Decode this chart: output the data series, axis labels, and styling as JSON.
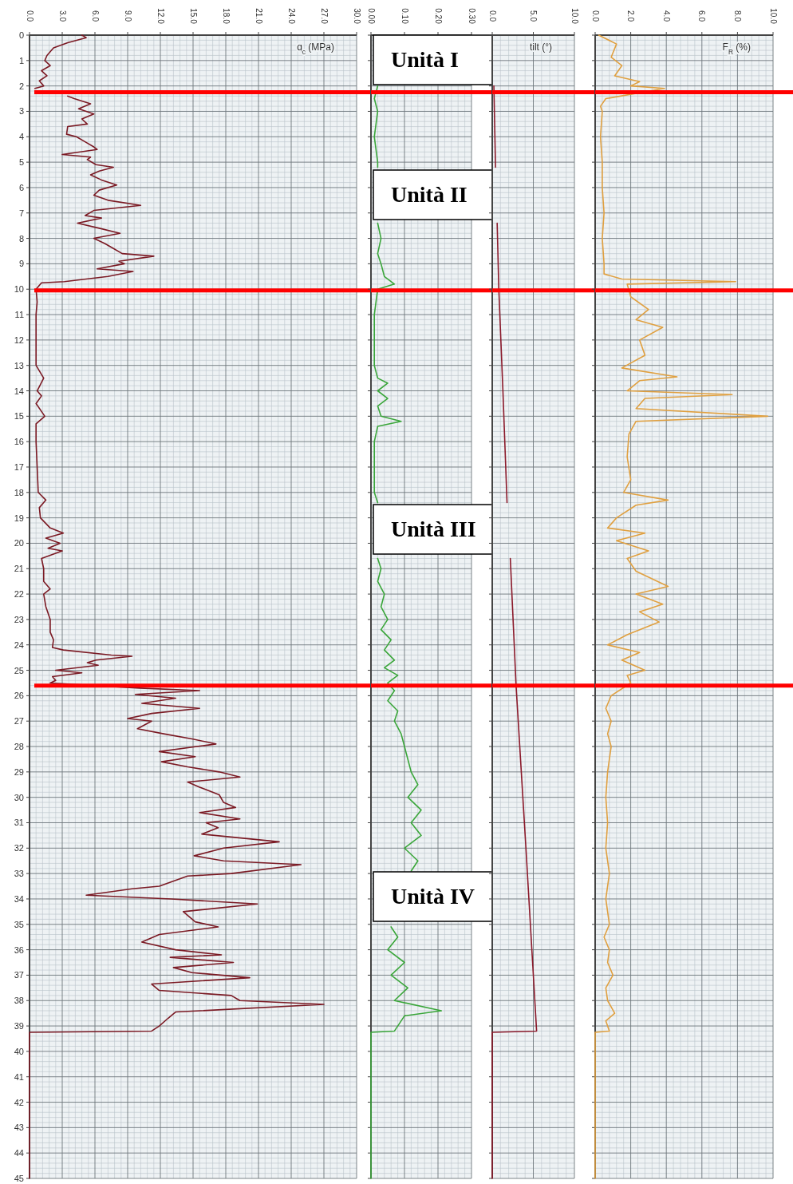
{
  "chart_data": [
    {
      "type": "line",
      "xlabel": "q$_{c}$ (MPa)",
      "xlim": [
        0,
        30
      ],
      "xticks": [
        {
          "value": 0,
          "label": "0.0"
        },
        {
          "value": 3,
          "label": "3.0"
        },
        {
          "value": 6,
          "label": "6.0"
        },
        {
          "value": 9,
          "label": "9.0"
        },
        {
          "value": 12,
          "label": "12.0"
        },
        {
          "value": 15,
          "label": "15.0"
        },
        {
          "value": 18,
          "label": "18.0"
        },
        {
          "value": 21,
          "label": "21.0"
        },
        {
          "value": 24,
          "label": "24.0"
        },
        {
          "value": 27,
          "label": "27.0"
        },
        {
          "value": 30,
          "label": "30.0"
        }
      ],
      "ylim": [
        45,
        0
      ],
      "yticks": [
        0,
        1,
        2,
        3,
        4,
        5,
        6,
        7,
        8,
        9,
        10,
        11,
        12,
        13,
        14,
        15,
        16,
        17,
        18,
        19,
        20,
        21,
        22,
        23,
        24,
        25,
        26,
        27,
        28,
        29,
        30,
        31,
        32,
        33,
        34,
        35,
        36,
        37,
        38,
        39,
        40,
        41,
        42,
        43,
        44,
        45
      ],
      "grid": true,
      "ref_lines": [
        {
          "axis": "y",
          "value": 2.25,
          "color": "#ff0000"
        },
        {
          "axis": "y",
          "value": 10.05,
          "color": "#ff0000"
        },
        {
          "axis": "y",
          "value": 25.6,
          "color": "#ff0000"
        }
      ],
      "series": [
        {
          "color": "#7b1a24",
          "x": [
            4.8,
            5.2,
            3.5,
            2.2,
            1.6,
            1.4,
            1.9,
            1.1,
            1.6,
            0.9,
            1.3,
            0.5,
            null,
            3.5,
            4.1,
            5.6,
            4.5,
            5.9,
            4.8,
            5.3,
            3.5,
            3.4,
            4.3,
            5.1,
            5.9,
            6.2,
            3.0,
            5.6,
            5.3,
            6.1,
            7.7,
            6.4,
            5.6,
            6.6,
            8.0,
            6.4,
            5.9,
            7.2,
            10.2,
            5.9,
            5.1,
            6.6,
            4.4,
            6.4,
            8.3,
            5.9,
            6.9,
            7.7,
            8.5,
            11.4,
            8.2,
            8.7,
            6.2,
            9.5,
            7.2,
            3.2,
            1.1,
            0.6,
            0.7,
            0.6,
            0.6,
            0.6,
            1.3,
            0.7,
            1.1,
            0.6,
            1.4,
            0.6,
            0.6,
            0.7,
            0.8,
            1.5,
            0.9,
            1.0,
            1.9,
            3.1,
            1.5,
            2.8,
            1.7,
            3.0,
            1.1,
            1.3,
            1.3,
            1.9,
            1.3,
            1.5,
            1.9,
            1.9,
            2.2,
            2.1,
            3.1,
            7.5,
            9.4,
            6.1,
            5.3,
            6.3,
            2.4,
            4.8,
            2.1,
            2.4,
            1.9,
            10.1,
            15.6,
            9.7,
            13.4,
            10.3,
            15.6,
            11.2,
            9.0,
            11.2,
            9.9,
            12.3,
            14.9,
            17.1,
            11.9,
            15.2,
            12.1,
            14.5,
            17.4,
            19.3,
            14.5,
            15.6,
            17.4,
            17.8,
            18.9,
            15.6,
            19.3,
            16.2,
            17.3,
            15.8,
            22.9,
            17.8,
            15.1,
            17.8,
            24.9,
            18.5,
            14.5,
            11.9,
            9.4,
            5.2,
            13.0,
            20.9,
            14.1,
            15.2,
            17.3,
            11.9,
            10.3,
            13.4,
            17.6,
            12.9,
            18.7,
            13.2,
            14.9,
            20.2,
            11.2,
            11.9,
            18.5,
            19.3,
            27.0,
            13.4,
            12.7,
            11.9,
            11.2,
            0,
            0
          ],
          "values": [
            0,
            0.1,
            0.3,
            0.5,
            0.8,
            1.0,
            1.2,
            1.4,
            1.6,
            1.8,
            2.0,
            2.1,
            null,
            2.4,
            2.5,
            2.7,
            2.9,
            3.1,
            3.3,
            3.5,
            3.6,
            3.9,
            4.0,
            4.2,
            4.4,
            4.5,
            4.7,
            4.8,
            4.9,
            5.1,
            5.2,
            5.35,
            5.5,
            5.7,
            5.9,
            6.1,
            6.3,
            6.5,
            6.7,
            6.9,
            7.1,
            7.2,
            7.4,
            7.6,
            7.8,
            8.0,
            8.2,
            8.4,
            8.6,
            8.7,
            8.9,
            9.0,
            9.2,
            9.3,
            9.5,
            9.7,
            9.75,
            10.0,
            10.5,
            11,
            12,
            13,
            13.5,
            14,
            14.2,
            14.5,
            15,
            15.3,
            16,
            17,
            18,
            18.3,
            18.6,
            19,
            19.4,
            19.6,
            19.8,
            20,
            20.2,
            20.3,
            20.6,
            21,
            21.5,
            21.8,
            22,
            22.5,
            23,
            23.5,
            23.8,
            24.1,
            24.2,
            24.4,
            24.45,
            24.6,
            24.7,
            24.8,
            25.0,
            25.1,
            25.25,
            25.4,
            25.5,
            25.7,
            25.8,
            25.95,
            26.1,
            26.3,
            26.5,
            26.7,
            26.9,
            27.0,
            27.3,
            27.5,
            27.7,
            27.9,
            28.2,
            28.4,
            28.6,
            28.8,
            29.0,
            29.2,
            29.4,
            29.6,
            29.9,
            30.2,
            30.4,
            30.6,
            30.85,
            31.0,
            31.2,
            31.45,
            31.75,
            32.0,
            32.3,
            32.5,
            32.65,
            33.0,
            33.1,
            33.5,
            33.6,
            33.85,
            34.0,
            34.2,
            34.5,
            34.9,
            35.1,
            35.4,
            35.7,
            36.0,
            36.2,
            36.3,
            36.5,
            36.7,
            36.9,
            37.1,
            37.35,
            37.6,
            37.8,
            38.0,
            38.15,
            38.45,
            38.7,
            39.0,
            39.2,
            39.25,
            45
          ]
        }
      ]
    },
    {
      "type": "line",
      "xlim": [
        0,
        0.3
      ],
      "xticks": [
        {
          "value": 0,
          "label": "0.00"
        },
        {
          "value": 0.1,
          "label": "0.10"
        },
        {
          "value": 0.2,
          "label": "0.20"
        },
        {
          "value": 0.3,
          "label": "0.30"
        }
      ],
      "ylim": [
        45,
        0
      ],
      "yticks": [
        0,
        1,
        2,
        3,
        4,
        5,
        6,
        7,
        8,
        9,
        10,
        11,
        12,
        13,
        14,
        15,
        16,
        17,
        18,
        19,
        20,
        21,
        22,
        23,
        24,
        25,
        26,
        27,
        28,
        29,
        30,
        31,
        32,
        33,
        34,
        35,
        36,
        37,
        38,
        39,
        40,
        41,
        42,
        43,
        44,
        45
      ],
      "grid": true,
      "tick_labels": "x",
      "ref_lines": [
        {
          "axis": "y",
          "value": 2.25,
          "color": "#ff0000"
        },
        {
          "axis": "y",
          "value": 10.05,
          "color": "#ff0000"
        },
        {
          "axis": "y",
          "value": 25.6,
          "color": "#ff0000"
        }
      ],
      "annotations": [
        "Unità I",
        "Unità II",
        "Unità III",
        "Unità IV"
      ],
      "series": [
        {
          "color": "#3aa63a",
          "x": [
            0.02,
            0.01,
            0.02,
            0.01,
            0.02,
            0.02,
            null,
            0.02,
            0.03,
            0.02,
            0.03,
            0.04,
            0.07,
            0.02,
            0.01,
            0.01,
            0.01,
            0.02,
            0.05,
            0.02,
            0.05,
            0.02,
            0.03,
            0.09,
            0.02,
            0.01,
            0.01,
            0.01,
            0.02,
            null,
            0.02,
            0.03,
            0.02,
            0.04,
            0.03,
            0.05,
            0.03,
            0.06,
            0.04,
            0.07,
            0.04,
            0.08,
            0.05,
            0.07,
            0.05,
            0.08,
            0.07,
            0.09,
            0.1,
            0.11,
            0.12,
            0.14,
            0.11,
            0.15,
            0.12,
            0.15,
            0.1,
            0.14,
            0.12,
            null,
            0.06,
            0.08,
            0.05,
            0.1,
            0.06,
            0.11,
            0.07,
            0.21,
            0.1,
            0.08,
            0.07,
            0,
            0
          ],
          "values": [
            2.0,
            2.5,
            3,
            4,
            5,
            5.2,
            null,
            7.4,
            8,
            8.6,
            9,
            9.5,
            9.8,
            10.0,
            11,
            12,
            13,
            13.5,
            13.7,
            14.0,
            14.3,
            14.6,
            15.0,
            15.2,
            15.4,
            16,
            17,
            18,
            18.4,
            null,
            20.6,
            21,
            21.5,
            22,
            22.5,
            23,
            23.4,
            23.8,
            24.2,
            24.6,
            24.9,
            25.2,
            25.5,
            25.8,
            26.2,
            26.6,
            27,
            27.5,
            28,
            28.5,
            29,
            29.5,
            30,
            30.5,
            31,
            31.5,
            32,
            32.5,
            32.9,
            null,
            35.1,
            35.5,
            36,
            36.5,
            37,
            37.5,
            38,
            38.4,
            38.6,
            39.0,
            39.2,
            39.25,
            45
          ]
        }
      ]
    },
    {
      "type": "line",
      "xlabel": "tilt (°)",
      "xlim": [
        0,
        10
      ],
      "xticks": [
        {
          "value": 0,
          "label": "0.0"
        },
        {
          "value": 5,
          "label": "5.0"
        },
        {
          "value": 10,
          "label": "10.0"
        }
      ],
      "ylim": [
        45,
        0
      ],
      "yticks": [
        0,
        1,
        2,
        3,
        4,
        5,
        6,
        7,
        8,
        9,
        10,
        11,
        12,
        13,
        14,
        15,
        16,
        17,
        18,
        19,
        20,
        21,
        22,
        23,
        24,
        25,
        26,
        27,
        28,
        29,
        30,
        31,
        32,
        33,
        34,
        35,
        36,
        37,
        38,
        39,
        40,
        41,
        42,
        43,
        44,
        45
      ],
      "grid": true,
      "tick_labels": "x",
      "ref_lines": [
        {
          "axis": "y",
          "value": 2.25,
          "color": "#ff0000"
        },
        {
          "axis": "y",
          "value": 10.05,
          "color": "#ff0000"
        },
        {
          "axis": "y",
          "value": 25.6,
          "color": "#ff0000"
        }
      ],
      "series": [
        {
          "color": "#8b1a2b",
          "x": [
            0.2,
            0.4,
            null,
            0.6,
            0.8,
            1.3,
            1.8,
            null,
            2.2,
            2.9,
            4.1,
            5.4,
            0,
            0
          ],
          "values": [
            2,
            5.2,
            null,
            7.4,
            10,
            14,
            18.4,
            null,
            20.6,
            25.6,
            32,
            39.2,
            39.25,
            45
          ]
        }
      ]
    },
    {
      "type": "line",
      "xlabel": "F$_{R}$ (%)",
      "xlim": [
        0,
        10
      ],
      "xticks": [
        {
          "value": 0,
          "label": "0.0"
        },
        {
          "value": 2,
          "label": "2.0"
        },
        {
          "value": 4,
          "label": "4.0"
        },
        {
          "value": 6,
          "label": "6.0"
        },
        {
          "value": 8,
          "label": "8.0"
        },
        {
          "value": 10,
          "label": "10.0"
        }
      ],
      "ylim": [
        45,
        0
      ],
      "yticks": [
        0,
        1,
        2,
        3,
        4,
        5,
        6,
        7,
        8,
        9,
        10,
        11,
        12,
        13,
        14,
        15,
        16,
        17,
        18,
        19,
        20,
        21,
        22,
        23,
        24,
        25,
        26,
        27,
        28,
        29,
        30,
        31,
        32,
        33,
        34,
        35,
        36,
        37,
        38,
        39,
        40,
        41,
        42,
        43,
        44,
        45
      ],
      "grid": true,
      "tick_labels": "x",
      "ref_lines": [
        {
          "axis": "y",
          "value": 2.25,
          "color": "#ff0000"
        },
        {
          "axis": "y",
          "value": 10.05,
          "color": "#ff0000"
        },
        {
          "axis": "y",
          "value": 25.6,
          "color": "#ff0000"
        }
      ],
      "series": [
        {
          "color": "#e0a040",
          "x": [
            0.2,
            1.2,
            0.9,
            1.5,
            1.1,
            2.5,
            2.0,
            3.9,
            0.6,
            0.3,
            0.4,
            0.3,
            0.4,
            0.4,
            0.5,
            0.4,
            0.5,
            0.5,
            1.5,
            7.9,
            1.8,
            2.0,
            3.0,
            2.3,
            3.8,
            2.5,
            2.8,
            1.5,
            4.6,
            2.5,
            1.8,
            7.7,
            2.8,
            2.3,
            9.7,
            2.3,
            1.9,
            1.8,
            2.0,
            1.6,
            4.1,
            2.3,
            1.2,
            0.7,
            2.8,
            1.2,
            3.0,
            1.8,
            2.3,
            4.1,
            2.3,
            3.8,
            2.5,
            3.6,
            1.8,
            0.7,
            2.5,
            1.5,
            2.8,
            1.8,
            2.0,
            0.9,
            0.6,
            0.9,
            0.7,
            0.9,
            0.8,
            0.7,
            0.6,
            0.7,
            0.6,
            0.8,
            0.6,
            0.8,
            0.5,
            0.8,
            0.7,
            1.0,
            0.6,
            0.7,
            1.1,
            0.6,
            0.8,
            0,
            0
          ],
          "values": [
            0,
            0.35,
            0.87,
            1.2,
            1.6,
            1.83,
            2.0,
            2.1,
            2.5,
            2.8,
            3,
            4,
            5,
            6,
            7,
            8,
            9,
            9.4,
            9.6,
            9.7,
            9.8,
            10.3,
            10.8,
            11.2,
            11.5,
            12.0,
            12.6,
            13.1,
            13.45,
            13.6,
            14.0,
            14.15,
            14.3,
            14.7,
            15.0,
            15.2,
            15.7,
            16.6,
            17.5,
            18.0,
            18.3,
            18.5,
            19.0,
            19.4,
            19.6,
            19.9,
            20.3,
            20.6,
            21.1,
            21.7,
            22.0,
            22.4,
            22.7,
            23.1,
            23.6,
            24.0,
            24.3,
            24.6,
            25.0,
            25.2,
            25.5,
            26,
            26.5,
            27,
            27.5,
            28,
            28.5,
            29,
            30,
            31,
            32,
            33,
            34,
            35,
            35.5,
            36,
            36.5,
            37,
            37.5,
            38,
            38.5,
            38.8,
            39.2,
            39.25,
            45
          ]
        }
      ]
    }
  ]
}
